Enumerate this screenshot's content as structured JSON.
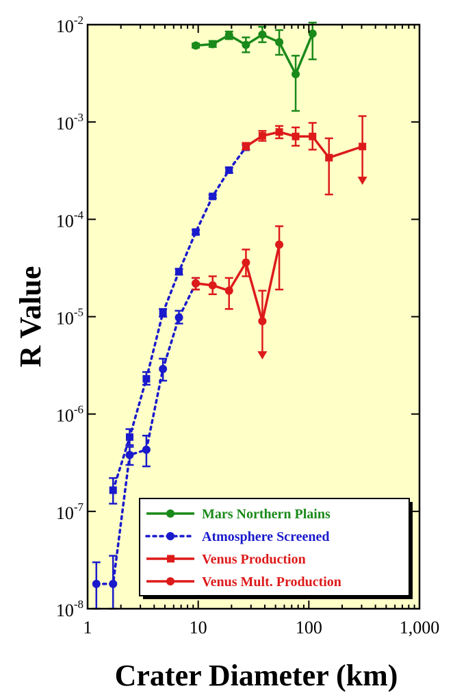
{
  "chart_data": {
    "type": "line",
    "title": "",
    "xlabel": "Crater Diameter (km)",
    "ylabel": "R Value",
    "xscale": "log",
    "yscale": "log",
    "xlim": [
      1,
      1000
    ],
    "ylim": [
      1e-08,
      0.01
    ],
    "x_ticks": [
      {
        "value": 1,
        "label": "1"
      },
      {
        "value": 10,
        "label": "10"
      },
      {
        "value": 100,
        "label": "100"
      },
      {
        "value": 1000,
        "label": "1,000"
      }
    ],
    "y_ticks": [
      {
        "value": 1e-08,
        "base": "10",
        "exp": "-8"
      },
      {
        "value": 1e-07,
        "base": "10",
        "exp": "-7"
      },
      {
        "value": 1e-06,
        "base": "10",
        "exp": "-6"
      },
      {
        "value": 1e-05,
        "base": "10",
        "exp": "-5"
      },
      {
        "value": 0.0001,
        "base": "10",
        "exp": "-4"
      },
      {
        "value": 0.001,
        "base": "10",
        "exp": "-3"
      },
      {
        "value": 0.01,
        "base": "10",
        "exp": "-2"
      }
    ],
    "plot_background": "#ffffc8",
    "legend_position": "bottom-right",
    "series": [
      {
        "name": "Mars Northern Plains",
        "color": "#1a8a1a",
        "marker": "circle",
        "line": "solid",
        "legend": true,
        "points": [
          {
            "x": 9.5,
            "y": 0.0061,
            "lo": 0.0058,
            "hi": 0.0064
          },
          {
            "x": 13.5,
            "y": 0.0063,
            "lo": 0.0059,
            "hi": 0.0068
          },
          {
            "x": 19,
            "y": 0.0078,
            "lo": 0.0071,
            "hi": 0.0085
          },
          {
            "x": 27,
            "y": 0.0062,
            "lo": 0.0052,
            "hi": 0.0074
          },
          {
            "x": 38,
            "y": 0.0079,
            "lo": 0.0066,
            "hi": 0.0095
          },
          {
            "x": 54,
            "y": 0.0066,
            "lo": 0.0049,
            "hi": 0.0088
          },
          {
            "x": 76,
            "y": 0.0031,
            "lo": 0.0013,
            "hi": 0.0048
          },
          {
            "x": 108,
            "y": 0.0081,
            "lo": 0.0044,
            "hi": 0.0105
          }
        ]
      },
      {
        "name": "Atmosphere Screened",
        "color": "#1a1acc",
        "marker": "square",
        "line": "dotted",
        "legend": false,
        "points": [
          {
            "x": 1.7,
            "y": 1.65e-07,
            "lo": 1.2e-07,
            "hi": 2.2e-07
          },
          {
            "x": 2.4,
            "y": 5.8e-07,
            "lo": 4.8e-07,
            "hi": 7e-07
          },
          {
            "x": 3.4,
            "y": 2.3e-06,
            "lo": 2e-06,
            "hi": 2.7e-06
          },
          {
            "x": 4.8,
            "y": 1.1e-05,
            "lo": 1e-05,
            "hi": 1.2e-05
          },
          {
            "x": 6.7,
            "y": 2.9e-05,
            "lo": 2.7e-05,
            "hi": 3.1e-05
          },
          {
            "x": 9.5,
            "y": 7.4e-05,
            "lo": 7e-05,
            "hi": 7.8e-05
          },
          {
            "x": 13.5,
            "y": 0.000172,
            "lo": 0.000165,
            "hi": 0.000179
          },
          {
            "x": 19,
            "y": 0.00032,
            "lo": 0.0003,
            "hi": 0.00034
          },
          {
            "x": 27,
            "y": 0.00055,
            "lo": 0.00052,
            "hi": 0.00058
          }
        ]
      },
      {
        "name": "Atmosphere Screened",
        "color": "#1a1acc",
        "marker": "circle",
        "line": "dotted",
        "legend": true,
        "points": [
          {
            "x": 1.2,
            "y": 1.8e-08,
            "lo": 1e-08,
            "hi": 3e-08
          },
          {
            "x": 1.7,
            "y": 1.8e-08,
            "lo": 1e-08,
            "hi": 3.5e-08
          },
          {
            "x": 2.4,
            "y": 3.8e-07,
            "lo": 3e-07,
            "hi": 4.6e-07
          },
          {
            "x": 3.4,
            "y": 4.3e-07,
            "lo": 2.9e-07,
            "hi": 6e-07
          },
          {
            "x": 4.8,
            "y": 2.9e-06,
            "lo": 2.2e-06,
            "hi": 3.7e-06
          },
          {
            "x": 6.7,
            "y": 9.8e-06,
            "lo": 8.5e-06,
            "hi": 1.15e-05
          },
          {
            "x": 9.5,
            "y": 2.2e-05,
            "lo": 1.9e-05,
            "hi": 2.5e-05
          }
        ]
      },
      {
        "name": "Venus Production",
        "color": "#dd1a1a",
        "marker": "square",
        "line": "solid",
        "legend": true,
        "points": [
          {
            "x": 27,
            "y": 0.00056,
            "lo": 0.00052,
            "hi": 0.00061
          },
          {
            "x": 38,
            "y": 0.00072,
            "lo": 0.00064,
            "hi": 0.00081
          },
          {
            "x": 54,
            "y": 0.00079,
            "lo": 0.00068,
            "hi": 0.00091
          },
          {
            "x": 76,
            "y": 0.00071,
            "lo": 0.00057,
            "hi": 0.00088
          },
          {
            "x": 108,
            "y": 0.00071,
            "lo": 0.00052,
            "hi": 0.00098
          },
          {
            "x": 152,
            "y": 0.00043,
            "lo": 0.00018,
            "hi": 0.00068
          },
          {
            "x": 305,
            "y": 0.00056,
            "lo": null,
            "hi": 0.00115,
            "upper_limit": true
          }
        ]
      },
      {
        "name": "Venus Mult. Production",
        "color": "#dd1a1a",
        "marker": "circle",
        "line": "solid",
        "legend": true,
        "points": [
          {
            "x": 9.5,
            "y": 2.2e-05,
            "lo": 1.9e-05,
            "hi": 2.5e-05
          },
          {
            "x": 13.5,
            "y": 2.1e-05,
            "lo": 1.7e-05,
            "hi": 2.6e-05
          },
          {
            "x": 19,
            "y": 1.85e-05,
            "lo": 1.2e-05,
            "hi": 2.5e-05
          },
          {
            "x": 27,
            "y": 3.6e-05,
            "lo": 2.6e-05,
            "hi": 4.9e-05
          },
          {
            "x": 38,
            "y": 9e-06,
            "lo": null,
            "hi": 1.85e-05,
            "upper_limit": true
          },
          {
            "x": 54,
            "y": 5.5e-05,
            "lo": 1.9e-05,
            "hi": 8.5e-05
          }
        ]
      }
    ]
  }
}
